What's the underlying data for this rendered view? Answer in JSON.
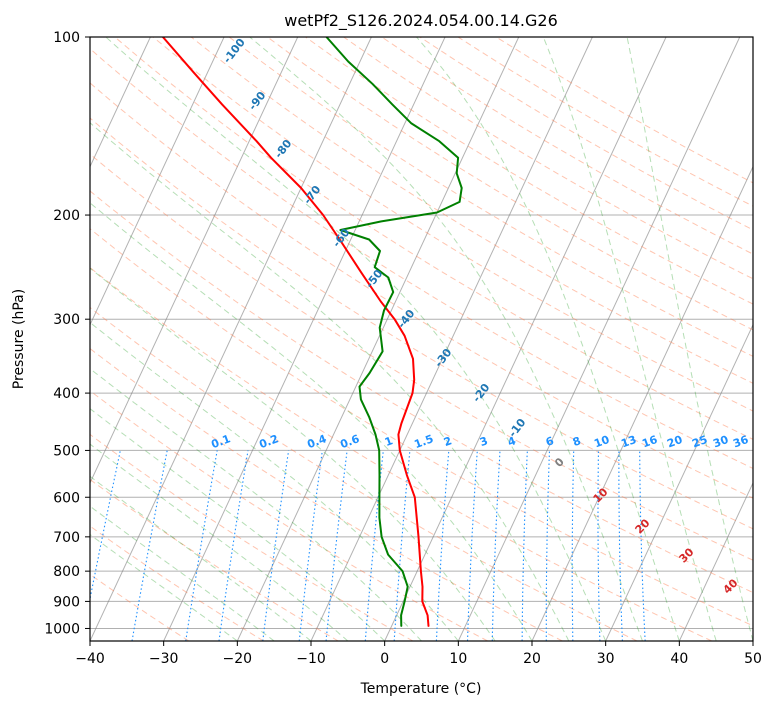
{
  "chart_data": {
    "type": "line",
    "subtype": "skew-T log-p diagram",
    "title": "wetPf2_S126.2024.054.00.14.G26",
    "xlabel": "Temperature (°C)",
    "ylabel": "Pressure (hPa)",
    "xlim": [
      -40,
      50
    ],
    "ylim": [
      1050,
      100
    ],
    "y_scale": "log",
    "grid": true,
    "x_ticks": [
      -40,
      -30,
      -20,
      -10,
      0,
      10,
      20,
      30,
      40,
      50
    ],
    "y_ticks": [
      100,
      200,
      300,
      400,
      500,
      600,
      700,
      800,
      900,
      1000
    ],
    "colors": {
      "temperature": "#ff0000",
      "dewpoint": "#008000",
      "dry_adiabats": "#ff7f50",
      "moist_adiabats": "#2ca02c",
      "mixing_ratio": "#1e90ff",
      "isotherms": "#808080"
    },
    "series": [
      {
        "name": "",
        "role": "temperature",
        "points": [
          {
            "p": 990,
            "t": 5.0
          },
          {
            "p": 950,
            "t": 4.2
          },
          {
            "p": 900,
            "t": 2.6
          },
          {
            "p": 850,
            "t": 1.7
          },
          {
            "p": 800,
            "t": 0.5
          },
          {
            "p": 700,
            "t": -2.0
          },
          {
            "p": 600,
            "t": -5.0
          },
          {
            "p": 550,
            "t": -7.5
          },
          {
            "p": 500,
            "t": -10.0
          },
          {
            "p": 470,
            "t": -11.2
          },
          {
            "p": 450,
            "t": -11.5
          },
          {
            "p": 400,
            "t": -11.9
          },
          {
            "p": 380,
            "t": -12.5
          },
          {
            "p": 350,
            "t": -14.0
          },
          {
            "p": 320,
            "t": -16.6
          },
          {
            "p": 300,
            "t": -19.0
          },
          {
            "p": 280,
            "t": -22.0
          },
          {
            "p": 250,
            "t": -26.5
          },
          {
            "p": 220,
            "t": -31.5
          },
          {
            "p": 200,
            "t": -35.3
          },
          {
            "p": 180,
            "t": -40.0
          },
          {
            "p": 160,
            "t": -46.0
          },
          {
            "p": 150,
            "t": -49.0
          },
          {
            "p": 130,
            "t": -56.0
          },
          {
            "p": 115,
            "t": -61.8
          },
          {
            "p": 100,
            "t": -68.3
          }
        ]
      },
      {
        "name": "",
        "role": "dewpoint",
        "points": [
          {
            "p": 990,
            "t": 1.3
          },
          {
            "p": 950,
            "t": 0.6
          },
          {
            "p": 900,
            "t": 0.2
          },
          {
            "p": 850,
            "t": -0.3
          },
          {
            "p": 800,
            "t": -2.0
          },
          {
            "p": 750,
            "t": -5.0
          },
          {
            "p": 700,
            "t": -7.0
          },
          {
            "p": 650,
            "t": -8.5
          },
          {
            "p": 600,
            "t": -9.8
          },
          {
            "p": 550,
            "t": -11.2
          },
          {
            "p": 500,
            "t": -12.8
          },
          {
            "p": 470,
            "t": -14.3
          },
          {
            "p": 440,
            "t": -16.2
          },
          {
            "p": 410,
            "t": -18.5
          },
          {
            "p": 390,
            "t": -19.5
          },
          {
            "p": 370,
            "t": -19.0
          },
          {
            "p": 340,
            "t": -18.6
          },
          {
            "p": 310,
            "t": -20.5
          },
          {
            "p": 290,
            "t": -21.0
          },
          {
            "p": 270,
            "t": -20.9
          },
          {
            "p": 255,
            "t": -22.5
          },
          {
            "p": 245,
            "t": -25.0
          },
          {
            "p": 230,
            "t": -25.3
          },
          {
            "p": 220,
            "t": -27.5
          },
          {
            "p": 212,
            "t": -32.0
          },
          {
            "p": 205,
            "t": -27.0
          },
          {
            "p": 198,
            "t": -20.0
          },
          {
            "p": 190,
            "t": -17.6
          },
          {
            "p": 180,
            "t": -18.2
          },
          {
            "p": 170,
            "t": -19.8
          },
          {
            "p": 160,
            "t": -20.6
          },
          {
            "p": 150,
            "t": -24.2
          },
          {
            "p": 140,
            "t": -29.1
          },
          {
            "p": 130,
            "t": -32.9
          },
          {
            "p": 120,
            "t": -36.9
          },
          {
            "p": 110,
            "t": -41.6
          },
          {
            "p": 100,
            "t": -46.1
          }
        ]
      }
    ],
    "dry_adiabat_labels": [
      "-100",
      "-90",
      "-80",
      "-70",
      "-60",
      "-50",
      "-40",
      "-30",
      "-20",
      "-10"
    ],
    "moist_adiabat_labels": [
      "0",
      "10",
      "20",
      "30",
      "40"
    ],
    "mixing_ratio_labels": [
      "0.1",
      "0.2",
      "0.4",
      "0.6",
      "1",
      "1.5",
      "2",
      "3",
      "4",
      "6",
      "8",
      "10",
      "13",
      "16",
      "20",
      "25",
      "30",
      "36"
    ]
  }
}
